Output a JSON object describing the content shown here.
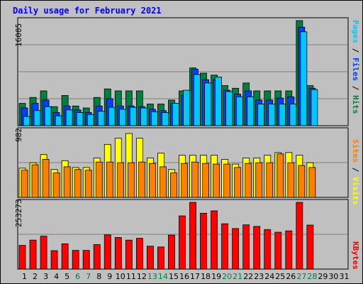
{
  "title": "Daily usage for February 2021",
  "right_labels": {
    "top": [
      {
        "text": "Pages",
        "color": "#00c8ff"
      },
      {
        "text": " / ",
        "color": "#000000"
      },
      {
        "text": "Files",
        "color": "#0040ff"
      },
      {
        "text": " / ",
        "color": "#000000"
      },
      {
        "text": "Hits",
        "color": "#008040"
      }
    ],
    "middle": [
      {
        "text": "Sites",
        "color": "#ff8000"
      },
      {
        "text": " / ",
        "color": "#000000"
      },
      {
        "text": "Visits",
        "color": "#ffff00"
      }
    ],
    "bottom": [
      {
        "text": "KBytes",
        "color": "#ff0000"
      }
    ]
  },
  "chart_data": [
    {
      "type": "bar",
      "panel": "top",
      "ymax_label": "16005",
      "ylim": [
        0,
        16005
      ],
      "categories": [
        "1",
        "2",
        "3",
        "4",
        "5",
        "6",
        "7",
        "8",
        "9",
        "10",
        "11",
        "12",
        "13",
        "14",
        "15",
        "16",
        "17",
        "18",
        "19",
        "20",
        "21",
        "22",
        "23",
        "24",
        "25",
        "26",
        "27",
        "28",
        "29",
        "30",
        "31"
      ],
      "weekend_days": [
        6,
        7,
        13,
        14,
        20,
        21,
        27,
        28
      ],
      "series": [
        {
          "name": "Hits",
          "color": "#008040",
          "values": [
            3400,
            4300,
            5300,
            2900,
            4600,
            3000,
            2700,
            4300,
            5600,
            5300,
            5300,
            5300,
            3300,
            3300,
            3900,
            5300,
            8800,
            8000,
            7700,
            6100,
            5700,
            6500,
            5300,
            5300,
            5300,
            5300,
            16005,
            6100,
            0,
            0,
            0
          ]
        },
        {
          "name": "Files",
          "color": "#0040ff",
          "values": [
            2700,
            3400,
            3900,
            2000,
            3000,
            2400,
            2000,
            3000,
            4100,
            3000,
            3000,
            2900,
            2500,
            2300,
            3400,
            4600,
            8600,
            7000,
            7000,
            5400,
            4800,
            5300,
            3900,
            3900,
            4200,
            4400,
            15000,
            5700,
            0,
            0,
            0
          ]
        },
        {
          "name": "Pages",
          "color": "#00c8ff",
          "values": [
            1400,
            2300,
            2900,
            1500,
            2400,
            2000,
            1700,
            2200,
            2800,
            2500,
            2800,
            2700,
            2100,
            2000,
            3400,
            5400,
            7800,
            6500,
            7400,
            5200,
            4400,
            4400,
            3300,
            3300,
            3300,
            3300,
            14300,
            5500,
            0,
            0,
            0
          ]
        }
      ]
    },
    {
      "type": "bar",
      "panel": "middle",
      "ymax_label": "982",
      "ylim": [
        0,
        982
      ],
      "categories": [
        "1",
        "2",
        "3",
        "4",
        "5",
        "6",
        "7",
        "8",
        "9",
        "10",
        "11",
        "12",
        "13",
        "14",
        "15",
        "16",
        "17",
        "18",
        "19",
        "20",
        "21",
        "22",
        "23",
        "24",
        "25",
        "26",
        "27",
        "28",
        "29",
        "30",
        "31"
      ],
      "series": [
        {
          "name": "Visits",
          "color": "#ffff00",
          "values": [
            430,
            510,
            630,
            410,
            540,
            440,
            440,
            580,
            780,
            870,
            940,
            870,
            580,
            650,
            410,
            620,
            620,
            620,
            620,
            560,
            490,
            580,
            580,
            620,
            660,
            660,
            620,
            510,
            0,
            0,
            0
          ]
        },
        {
          "name": "Sites",
          "color": "#ff8000",
          "values": [
            400,
            480,
            560,
            360,
            450,
            410,
            400,
            520,
            520,
            510,
            510,
            520,
            500,
            450,
            360,
            500,
            520,
            500,
            490,
            490,
            440,
            500,
            510,
            510,
            640,
            510,
            470,
            440,
            0,
            0,
            0
          ]
        }
      ]
    },
    {
      "type": "bar",
      "panel": "bottom",
      "ymax_label": "253273",
      "ylim": [
        0,
        253273
      ],
      "categories": [
        "1",
        "2",
        "3",
        "4",
        "5",
        "6",
        "7",
        "8",
        "9",
        "10",
        "11",
        "12",
        "13",
        "14",
        "15",
        "16",
        "17",
        "18",
        "19",
        "20",
        "21",
        "22",
        "23",
        "24",
        "25",
        "26",
        "27",
        "28",
        "29",
        "30",
        "31"
      ],
      "series": [
        {
          "name": "KBytes",
          "color": "#ff0000",
          "values": [
            90000,
            110000,
            125000,
            70000,
            96000,
            71000,
            71000,
            93000,
            130000,
            120000,
            110000,
            117000,
            87000,
            84000,
            129000,
            202000,
            253273,
            212000,
            221000,
            172000,
            154000,
            168000,
            162000,
            150000,
            140000,
            145000,
            253273,
            167000,
            0,
            0,
            0
          ]
        }
      ]
    }
  ]
}
